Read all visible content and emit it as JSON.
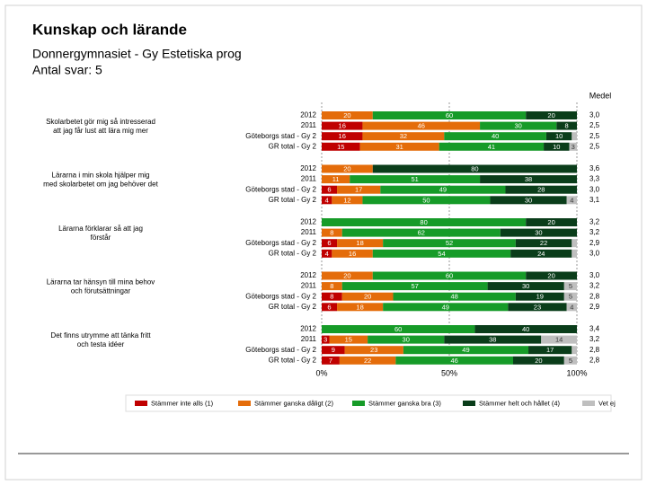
{
  "chart_data": {
    "type": "bar",
    "orientation": "horizontal",
    "stacked": true,
    "title": "Kunskap och lärande",
    "subtitle": "Donnergymnasiet - Gy Estetiska prog",
    "note": "Antal svar: 5",
    "groups": [
      "Skolarbetet gör mig så intresserad att jag får lust att lära mig mer",
      "Lärarna i min skola hjälper mig med skolarbetet om jag behöver det",
      "Lärarna förklarar så att jag förstår",
      "Lärarna tar hänsyn till mina behov och förutsättningar",
      "Det finns utrymme att tänka fritt och testa idéer"
    ],
    "categories": [
      "2012",
      "2011",
      "Göteborgs stad - Gy 2",
      "GR total - Gy 2",
      "2012",
      "2011",
      "Göteborgs stad - Gy 2",
      "GR total - Gy 2",
      "2012",
      "2011",
      "Göteborgs stad - Gy 2",
      "GR total - Gy 2",
      "2012",
      "2011",
      "Göteborgs stad - Gy 2",
      "GR total - Gy 2",
      "2012",
      "2011",
      "Göteborgs stad - Gy 2",
      "GR total - Gy 2"
    ],
    "series": [
      {
        "name": "Stämmer inte alls (1)",
        "color": "#c00000",
        "values": [
          0,
          16,
          16,
          15,
          0,
          0,
          6,
          4,
          0,
          0,
          6,
          4,
          0,
          0,
          8,
          6,
          0,
          3,
          9,
          7
        ]
      },
      {
        "name": "Stämmer ganska dåligt (2)",
        "color": "#e46c0a",
        "values": [
          20,
          46,
          32,
          31,
          20,
          11,
          17,
          12,
          0,
          8,
          18,
          16,
          20,
          8,
          20,
          18,
          0,
          15,
          23,
          22
        ]
      },
      {
        "name": "Stämmer ganska bra (3)",
        "color": "#169b28",
        "values": [
          60,
          30,
          40,
          41,
          0,
          51,
          49,
          50,
          80,
          62,
          52,
          54,
          60,
          57,
          48,
          49,
          60,
          30,
          49,
          46
        ]
      },
      {
        "name": "Stämmer helt och hållet (4)",
        "color": "#0a3d1a",
        "values": [
          20,
          8,
          10,
          10,
          80,
          38,
          28,
          30,
          20,
          30,
          22,
          24,
          20,
          30,
          19,
          23,
          40,
          38,
          17,
          20
        ]
      },
      {
        "name": "Vet ej",
        "color": "#bfbfbf",
        "values": [
          0,
          0,
          2,
          3,
          0,
          0,
          0,
          4,
          0,
          0,
          2,
          2,
          0,
          5,
          5,
          4,
          0,
          14,
          2,
          5
        ]
      }
    ],
    "medel_title": "Medel",
    "medel": [
      3.0,
      2.5,
      2.5,
      2.5,
      3.6,
      3.3,
      3.0,
      3.1,
      3.2,
      3.2,
      2.9,
      3.0,
      3.0,
      3.2,
      2.8,
      2.9,
      3.4,
      3.2,
      2.8,
      2.8
    ],
    "medel_labels": [
      "3,0",
      "2,5",
      "2,5",
      "2,5",
      "3,6",
      "3,3",
      "3,0",
      "3,1",
      "3,2",
      "3,2",
      "2,9",
      "3,0",
      "3,0",
      "3,2",
      "2,8",
      "2,9",
      "3,4",
      "3,2",
      "2,8",
      "2,8"
    ],
    "xlim": [
      0,
      100
    ],
    "xticks": [
      {
        "value": 0,
        "label": "0%"
      },
      {
        "value": 50,
        "label": "50%"
      },
      {
        "value": 100,
        "label": "100%"
      }
    ],
    "grid": true,
    "legend": "bottom"
  }
}
